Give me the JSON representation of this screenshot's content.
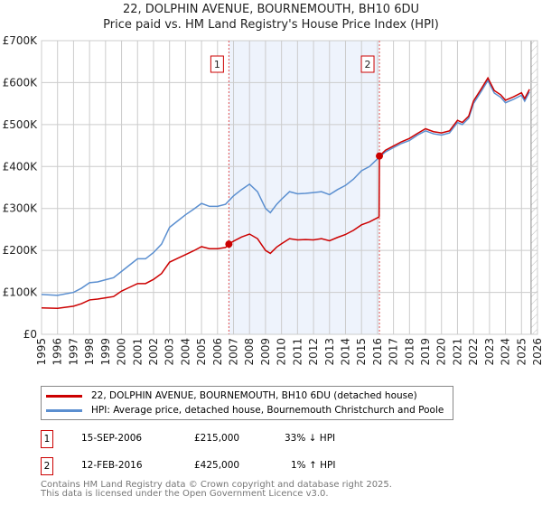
{
  "title": "22, DOLPHIN AVENUE, BOURNEMOUTH, BH10 6DU",
  "subtitle": "Price paid vs. HM Land Registry's House Price Index (HPI)",
  "chart_data": {
    "type": "line",
    "ylim": [
      0,
      700000
    ],
    "xlim": [
      1995,
      2026
    ],
    "yticks": [
      "£0",
      "£100K",
      "£200K",
      "£300K",
      "£400K",
      "£500K",
      "£600K",
      "£700K"
    ],
    "xticks": [
      "1995",
      "1996",
      "1997",
      "1998",
      "1999",
      "2000",
      "2001",
      "2002",
      "2003",
      "2004",
      "2005",
      "2006",
      "2007",
      "2008",
      "2009",
      "2010",
      "2011",
      "2012",
      "2013",
      "2014",
      "2015",
      "2016",
      "2017",
      "2018",
      "2019",
      "2020",
      "2021",
      "2022",
      "2023",
      "2024",
      "2025",
      "2026"
    ],
    "shaded_range": [
      2006.71,
      2016.12
    ],
    "forecast_from": 2025.6,
    "series": [
      {
        "name": "22, DOLPHIN AVENUE, BOURNEMOUTH, BH10 6DU (detached house)",
        "color": "#cc0000",
        "x": [
          1995,
          1996,
          1997,
          1997.5,
          1998,
          1998.5,
          1999,
          1999.5,
          2000,
          2000.5,
          2001,
          2001.5,
          2002,
          2002.5,
          2003,
          2003.5,
          2004,
          2004.5,
          2005,
          2005.5,
          2006,
          2006.5,
          2006.71,
          2007,
          2007.5,
          2008,
          2008.5,
          2009,
          2009.3,
          2009.7,
          2010,
          2010.5,
          2011,
          2011.5,
          2012,
          2012.5,
          2013,
          2013.5,
          2014,
          2014.5,
          2015,
          2015.5,
          2016.1,
          2016.12,
          2016.5,
          2017,
          2017.5,
          2018,
          2018.5,
          2019,
          2019.5,
          2020,
          2020.5,
          2021,
          2021.3,
          2021.7,
          2022,
          2022.5,
          2022.9,
          2023.3,
          2023.7,
          2024,
          2024.5,
          2025,
          2025.2,
          2025.5
        ],
        "y": [
          63000,
          62000,
          67000,
          73000,
          82000,
          84000,
          87000,
          90000,
          103000,
          112000,
          121000,
          121000,
          131000,
          145000,
          172000,
          181000,
          190000,
          199000,
          209000,
          204000,
          204000,
          207000,
          215000,
          222000,
          232000,
          239000,
          228000,
          200000,
          193000,
          208000,
          216000,
          228000,
          225000,
          226000,
          225000,
          228000,
          223000,
          231000,
          238000,
          248000,
          261000,
          268000,
          280000,
          425000,
          439000,
          449000,
          459000,
          467000,
          479000,
          490000,
          483000,
          480000,
          485000,
          510000,
          505000,
          520000,
          556000,
          586000,
          611000,
          581000,
          571000,
          558000,
          566000,
          576000,
          562000,
          584000
        ]
      },
      {
        "name": "HPI: Average price, detached house, Bournemouth Christchurch and Poole",
        "color": "#5b8fd0",
        "x": [
          1995,
          1996,
          1997,
          1997.5,
          1998,
          1998.5,
          1999,
          1999.5,
          2000,
          2000.5,
          2001,
          2001.5,
          2002,
          2002.5,
          2003,
          2003.5,
          2004,
          2004.5,
          2005,
          2005.5,
          2006,
          2006.5,
          2007,
          2007.5,
          2008,
          2008.5,
          2009,
          2009.3,
          2009.7,
          2010,
          2010.5,
          2011,
          2011.5,
          2012,
          2012.5,
          2013,
          2013.5,
          2014,
          2014.5,
          2015,
          2015.5,
          2016.1,
          2016.5,
          2017,
          2017.5,
          2018,
          2018.5,
          2019,
          2019.5,
          2020,
          2020.5,
          2021,
          2021.3,
          2021.7,
          2022,
          2022.5,
          2022.9,
          2023.3,
          2023.7,
          2024,
          2024.5,
          2025,
          2025.2,
          2025.5
        ],
        "y": [
          95000,
          93000,
          100000,
          110000,
          123000,
          125000,
          130000,
          135000,
          150000,
          165000,
          180000,
          180000,
          195000,
          215000,
          255000,
          270000,
          285000,
          298000,
          312000,
          305000,
          305000,
          310000,
          330000,
          345000,
          358000,
          340000,
          300000,
          290000,
          310000,
          322000,
          340000,
          335000,
          336000,
          338000,
          340000,
          333000,
          345000,
          355000,
          370000,
          390000,
          400000,
          422000,
          435000,
          445000,
          455000,
          462000,
          475000,
          485000,
          478000,
          475000,
          480000,
          505000,
          500000,
          515000,
          550000,
          580000,
          605000,
          575000,
          565000,
          552000,
          560000,
          570000,
          556000,
          578000
        ]
      }
    ],
    "markers": [
      {
        "label": "1",
        "x": 2006.71,
        "y": 215000
      },
      {
        "label": "2",
        "x": 2016.12,
        "y": 425000
      }
    ]
  },
  "legend": {
    "red": "22, DOLPHIN AVENUE, BOURNEMOUTH, BH10 6DU (detached house)",
    "blue": "HPI: Average price, detached house, Bournemouth Christchurch and Poole"
  },
  "transactions": [
    {
      "num": "1",
      "date": "15-SEP-2006",
      "price": "£215,000",
      "hpi": "33% ↓ HPI"
    },
    {
      "num": "2",
      "date": "12-FEB-2016",
      "price": "£425,000",
      "hpi": "1% ↑ HPI"
    }
  ],
  "footer": {
    "line1": "Contains HM Land Registry data © Crown copyright and database right 2025.",
    "line2": "This data is licensed under the Open Government Licence v3.0."
  }
}
